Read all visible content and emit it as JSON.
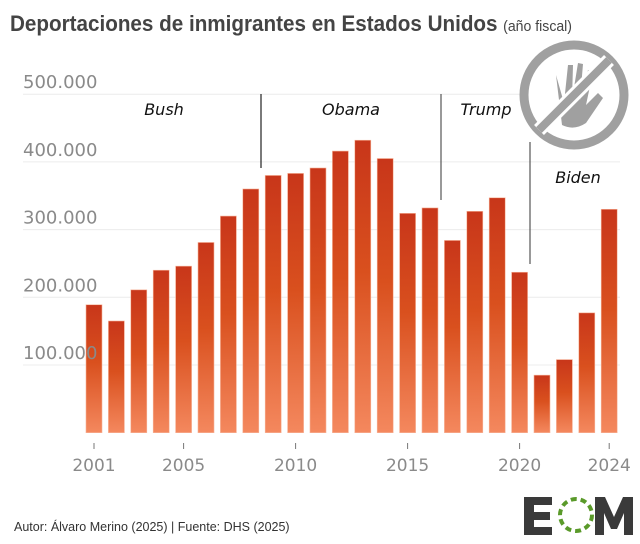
{
  "chart_data": {
    "type": "bar",
    "title": "Deportaciones de inmigrantes en Estados Unidos",
    "subtitle": "(año fiscal)",
    "xlabel": "",
    "ylabel": "",
    "categories": [
      2001,
      2002,
      2003,
      2004,
      2005,
      2006,
      2007,
      2008,
      2009,
      2010,
      2011,
      2012,
      2013,
      2014,
      2015,
      2016,
      2017,
      2018,
      2019,
      2020,
      2021,
      2022,
      2023,
      2024
    ],
    "values": [
      189000,
      165000,
      211000,
      240000,
      246000,
      281000,
      320000,
      360000,
      380000,
      383000,
      391000,
      416000,
      432000,
      405000,
      324000,
      332000,
      284000,
      327000,
      347000,
      237000,
      85000,
      108000,
      177000,
      330000
    ],
    "ylim": [
      0,
      500000
    ],
    "yticks": [
      100000,
      200000,
      300000,
      400000,
      500000
    ],
    "ytick_labels": [
      "100.000",
      "200.000",
      "300.000",
      "400.000",
      "500.000"
    ],
    "xticks": [
      2001,
      2005,
      2010,
      2015,
      2020,
      2024
    ],
    "xtick_labels": [
      "2001",
      "2005",
      "2010",
      "2015",
      "2020",
      "2024"
    ],
    "grid": "horizontal",
    "bar_color_top": "#c8361a",
    "bar_color_bottom": "#f4885e",
    "annotations": [
      {
        "label": "Bush",
        "divider_after_year": 2008.5
      },
      {
        "label": "Obama",
        "divider_after_year": 2016.5
      },
      {
        "label": "Trump",
        "divider_after_year": 2020.5
      },
      {
        "label": "Biden"
      }
    ]
  },
  "footer": {
    "credit": "Autor: Álvaro Merino (2025) | Fuente: DHS (2025)",
    "logo": "EOM"
  },
  "icons": {
    "watermark": "no-hand-icon"
  }
}
